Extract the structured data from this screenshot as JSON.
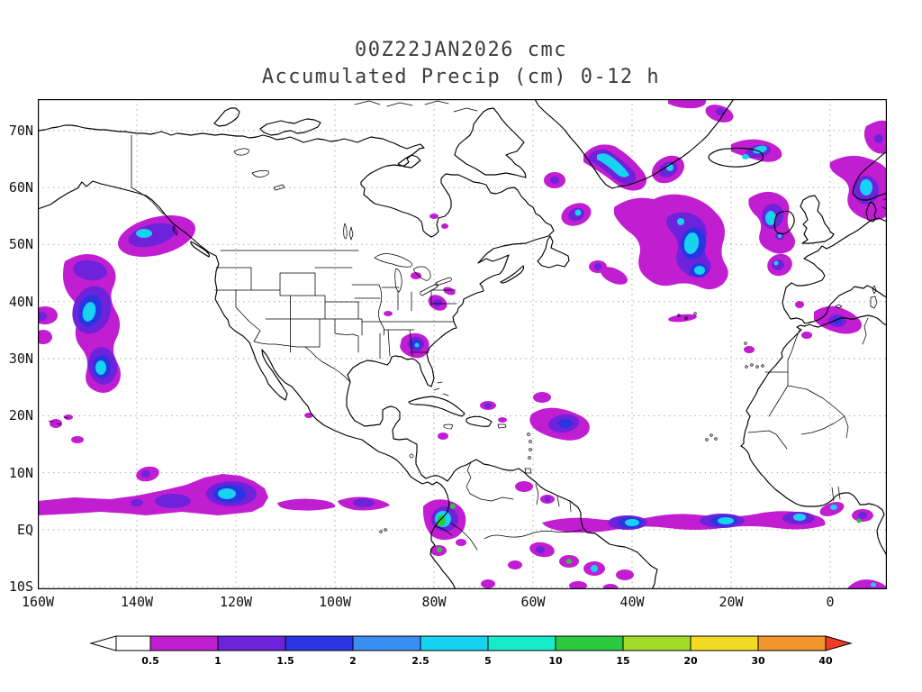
{
  "header": {
    "line1": "00Z22JAN2026 cmc",
    "line2": "Accumulated Precip (cm) 0-12 h"
  },
  "chart_data": {
    "type": "precip_map",
    "title": "00Z22JAN2026 cmc",
    "subtitle": "Accumulated Precip (cm) 0-12 h",
    "model": "cmc",
    "init_time": "00Z22JAN2026",
    "variable": "Accumulated Precip",
    "units": "cm",
    "forecast_window": "0-12 h",
    "lat_range": [
      "10S",
      "75N"
    ],
    "lon_range": [
      "160W",
      "10E"
    ],
    "grid": "on-dotted",
    "axes": {
      "lat_ticks": [
        {
          "value": 70,
          "label": "70N"
        },
        {
          "value": 60,
          "label": "60N"
        },
        {
          "value": 50,
          "label": "50N"
        },
        {
          "value": 40,
          "label": "40N"
        },
        {
          "value": 30,
          "label": "30N"
        },
        {
          "value": 20,
          "label": "20N"
        },
        {
          "value": 10,
          "label": "10N"
        },
        {
          "value": 0,
          "label": "EQ"
        },
        {
          "value": -10,
          "label": "10S"
        }
      ],
      "lon_ticks": [
        {
          "value": -160,
          "label": "160W"
        },
        {
          "value": -140,
          "label": "140W"
        },
        {
          "value": -120,
          "label": "120W"
        },
        {
          "value": -100,
          "label": "100W"
        },
        {
          "value": -80,
          "label": "80W"
        },
        {
          "value": -60,
          "label": "60W"
        },
        {
          "value": -40,
          "label": "40W"
        },
        {
          "value": -20,
          "label": "20W"
        },
        {
          "value": 0,
          "label": "0"
        }
      ]
    },
    "colorbar": {
      "levels": [
        "0.5",
        "1",
        "1.5",
        "2",
        "2.5",
        "5",
        "10",
        "15",
        "20",
        "30",
        "40"
      ],
      "below_color": "#ffffff",
      "colors": [
        "#c11ed2",
        "#6e22da",
        "#2a35e2",
        "#3a8ef2",
        "#18d2f2",
        "#16eccc",
        "#2bc93f",
        "#a2dc28",
        "#f2da25",
        "#f2952a"
      ],
      "above_color": "#f23c26",
      "orientation": "horizontal",
      "position": "bottom"
    },
    "precip_regions": [
      {
        "area": "Gulf of Alaska",
        "approx_center": "136W 51N",
        "peak_band_cm": "2.5-5"
      },
      {
        "area": "Northeast Pacific storm band",
        "approx_center": "150W 36N",
        "peak_band_cm": "2.5-5"
      },
      {
        "area": "Pacific ITCZ",
        "approx_center": "125W 7N",
        "peak_band_cm": "2.5-5"
      },
      {
        "area": "Panama / Colombia",
        "approx_center": "78W 4N",
        "peak_band_cm": "10-15"
      },
      {
        "area": "Amazon basin",
        "approx_center": "58W 5S",
        "peak_band_cm": "2.5-5"
      },
      {
        "area": "Atlantic ITCZ",
        "approx_center": "30W 2N",
        "peak_band_cm": "2.5-5"
      },
      {
        "area": "Caribbean leeward islands",
        "approx_center": "54W 18N",
        "peak_band_cm": "1.5-2"
      },
      {
        "area": "Southeast US",
        "approx_center": "84W 32N",
        "peak_band_cm": "2.5-5"
      },
      {
        "area": "Mid-Atlantic US",
        "approx_center": "79W 40N",
        "peak_band_cm": "1-1.5"
      },
      {
        "area": "Southeast Greenland coast",
        "approx_center": "40W 63N",
        "peak_band_cm": "2.5-5"
      },
      {
        "area": "Central North Atlantic storm",
        "approx_center": "29W 52N",
        "peak_band_cm": "2.5-5"
      },
      {
        "area": "South of Cape Farewell",
        "approx_center": "51W 55N",
        "peak_band_cm": "2.5-5"
      },
      {
        "area": "Iceland / Norwegian Sea",
        "approx_center": "12W 65N",
        "peak_band_cm": "2.5-5"
      },
      {
        "area": "West of Ireland / Biscay",
        "approx_center": "12W 52N",
        "peak_band_cm": "2.5-5"
      },
      {
        "area": "North Sea / Norway coast",
        "approx_center": "7E 56N",
        "peak_band_cm": "2.5-5"
      },
      {
        "area": "Western Mediterranean",
        "approx_center": "2E 37N",
        "peak_band_cm": "1.5-2"
      },
      {
        "area": "Gulf of Guinea",
        "approx_center": "6E 3N",
        "peak_band_cm": "1-1.5"
      }
    ]
  }
}
